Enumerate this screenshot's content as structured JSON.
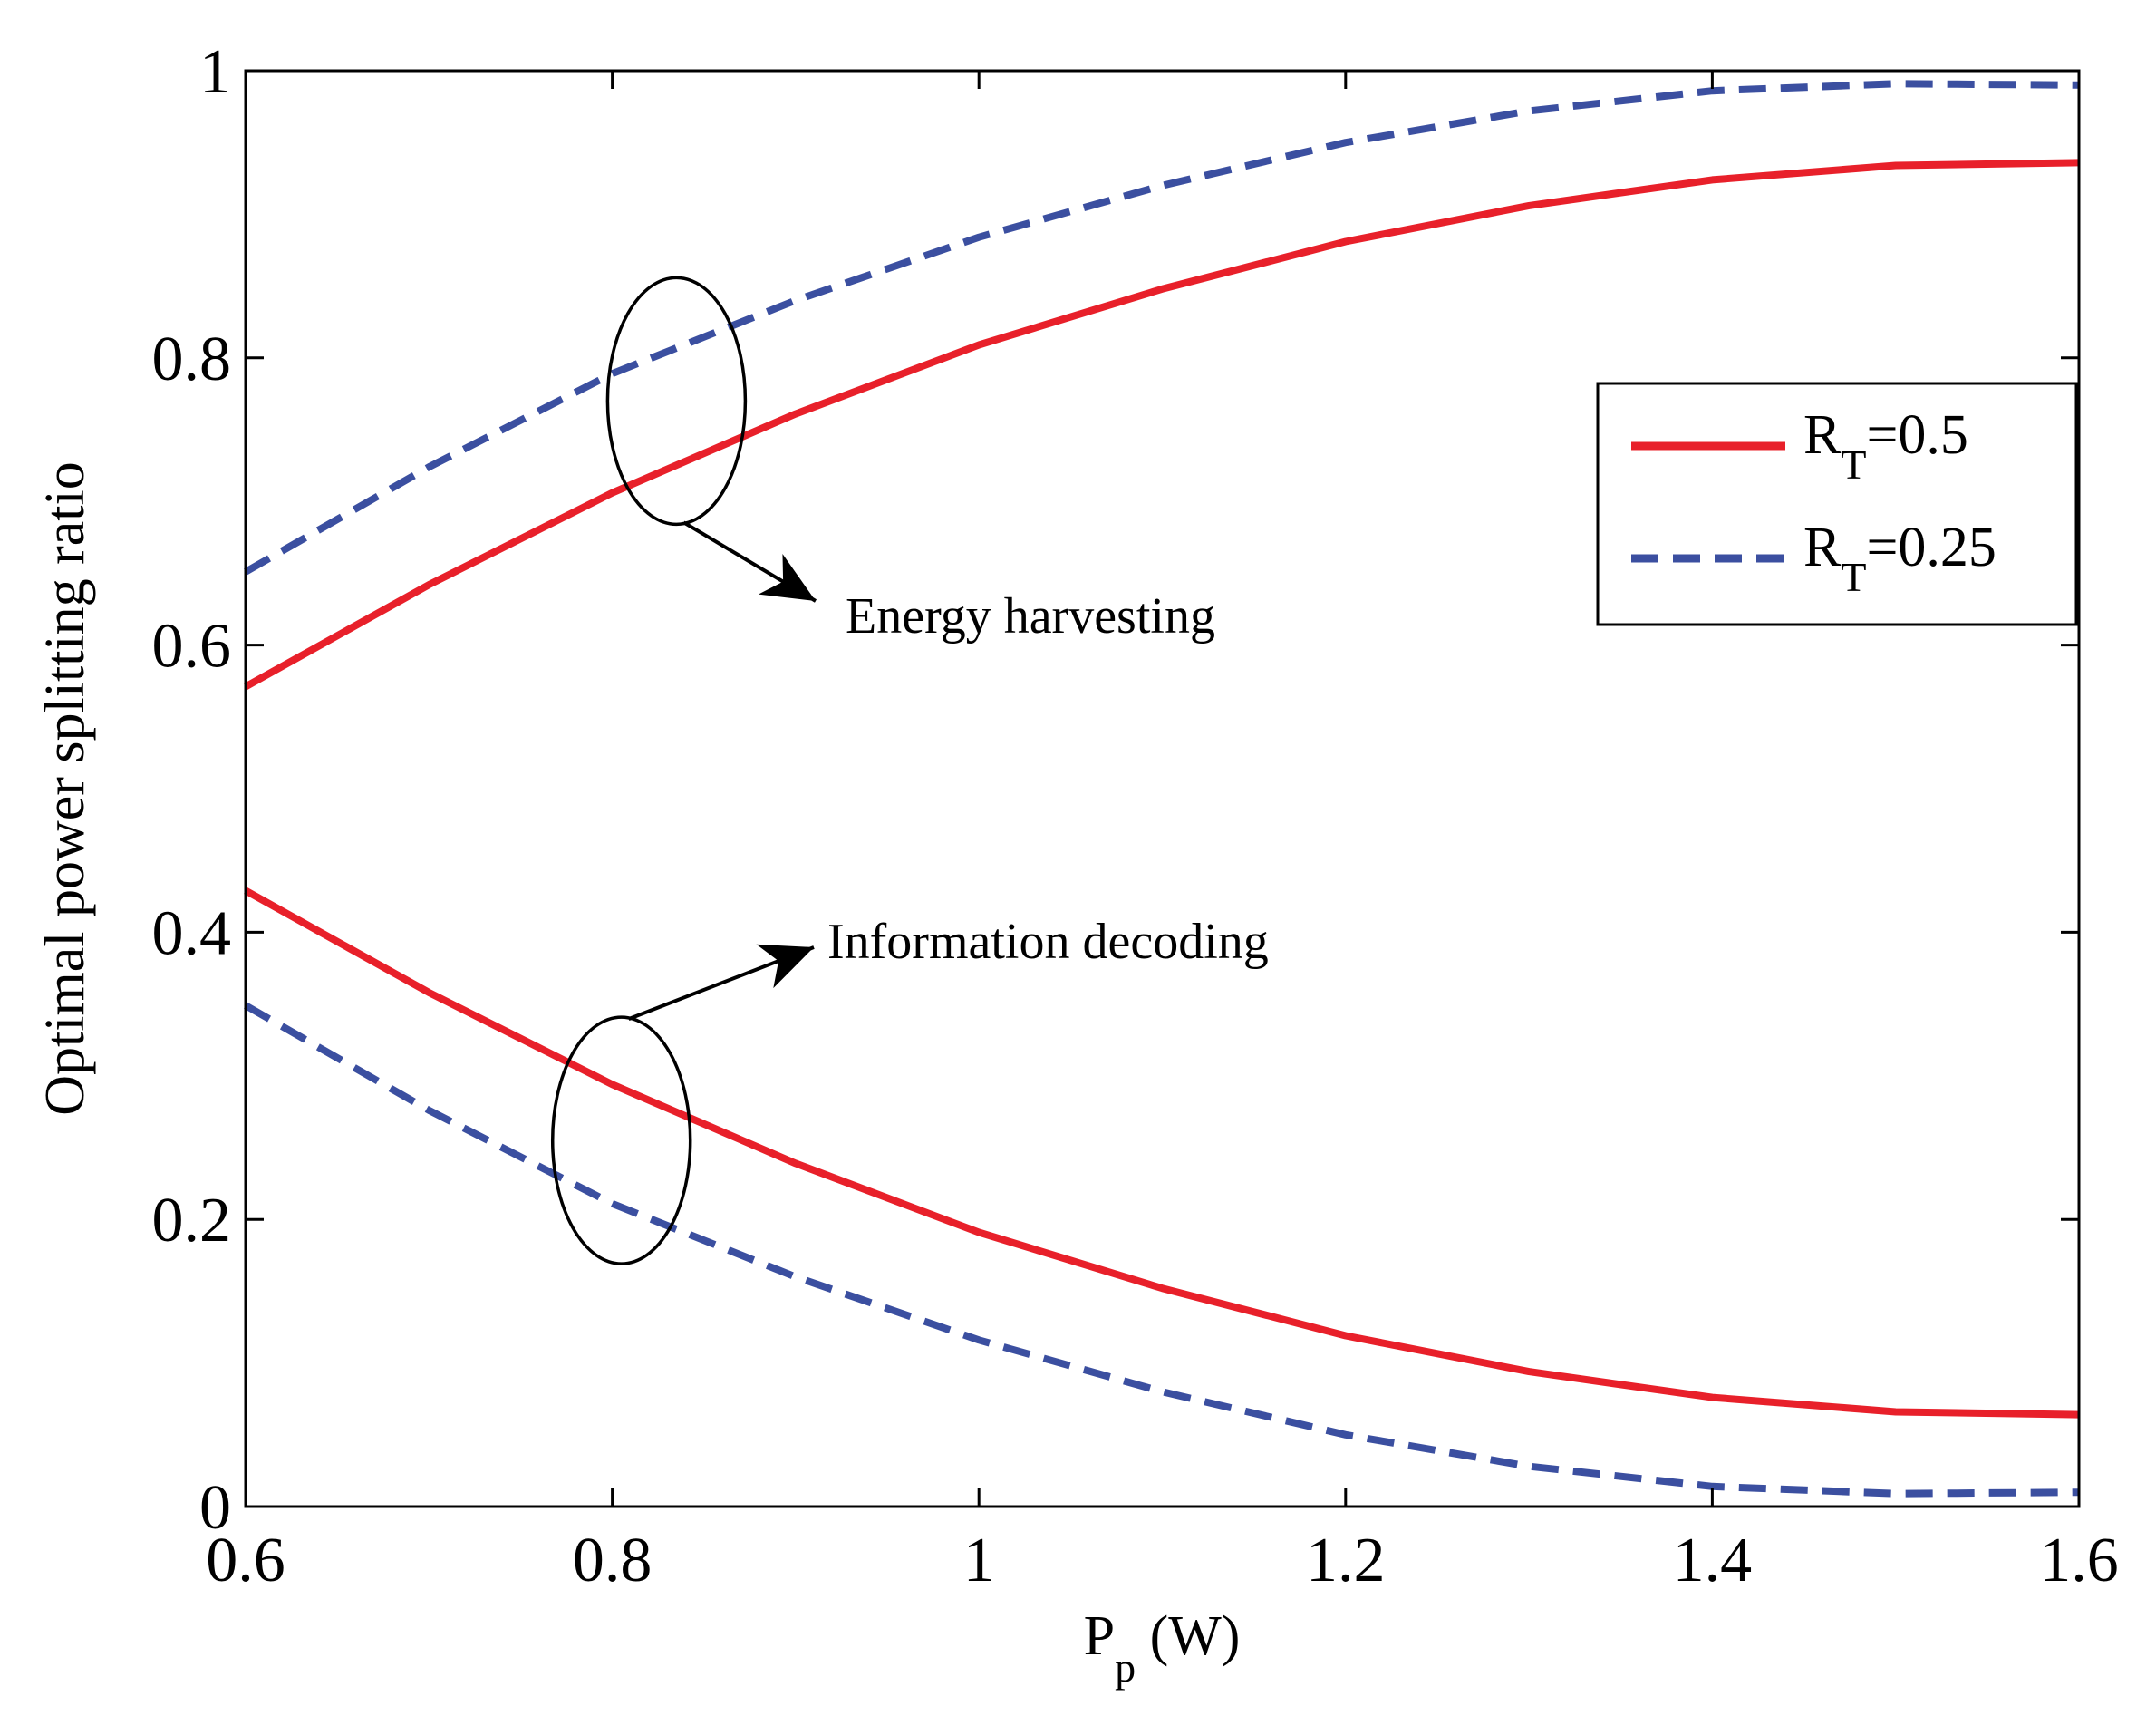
{
  "chart_data": {
    "type": "line",
    "title": "",
    "xlabel": {
      "main": "P",
      "sub": "p",
      "unit": " (W)"
    },
    "ylabel": "Optimal power splitting ratio",
    "xlim": [
      0.6,
      1.6
    ],
    "ylim": [
      0,
      1
    ],
    "xticks": [
      0.6,
      0.8,
      1.0,
      1.2,
      1.4,
      1.6
    ],
    "xtick_labels": [
      "0.6",
      "0.8",
      "1",
      "1.2",
      "1.4",
      "1.6"
    ],
    "yticks": [
      0,
      0.2,
      0.4,
      0.6,
      0.8,
      1.0
    ],
    "ytick_labels": [
      "0",
      "0.2",
      "0.4",
      "0.6",
      "0.8",
      "1"
    ],
    "grid": false,
    "legend_position": "right",
    "x": [
      0.6,
      0.7,
      0.8,
      0.9,
      1.0,
      1.1,
      1.2,
      1.3,
      1.4,
      1.5,
      1.6
    ],
    "series": [
      {
        "name": "R_T=0.5",
        "group": "energy-harvesting",
        "legend": true,
        "style": "solid",
        "color": "#e8202a",
        "values": [
          0.571,
          0.642,
          0.706,
          0.761,
          0.809,
          0.848,
          0.881,
          0.906,
          0.924,
          0.934,
          0.936
        ]
      },
      {
        "name": "R_T=0.25",
        "group": "energy-harvesting",
        "legend": true,
        "style": "dashed",
        "color": "#3b4fa0",
        "values": [
          0.651,
          0.724,
          0.789,
          0.84,
          0.884,
          0.92,
          0.95,
          0.972,
          0.986,
          0.991,
          0.99
        ]
      },
      {
        "name": "R_T=0.5",
        "group": "information-decoding",
        "legend": false,
        "style": "solid",
        "color": "#e8202a",
        "values": [
          0.429,
          0.358,
          0.294,
          0.239,
          0.191,
          0.152,
          0.119,
          0.094,
          0.076,
          0.066,
          0.064
        ]
      },
      {
        "name": "R_T=0.25",
        "group": "information-decoding",
        "legend": false,
        "style": "dashed",
        "color": "#3b4fa0",
        "values": [
          0.349,
          0.276,
          0.211,
          0.16,
          0.116,
          0.08,
          0.05,
          0.028,
          0.014,
          0.009,
          0.01
        ]
      }
    ],
    "legend": [
      {
        "main": "R",
        "sub": "T",
        "value": "=0.5",
        "style": "solid",
        "color": "#e8202a"
      },
      {
        "main": "R",
        "sub": "T",
        "value": "=0.25",
        "style": "dashed",
        "color": "#3b4fa0"
      }
    ],
    "annotations": [
      {
        "text": "Energy harvesting",
        "ellipse_center": [
          0.835,
          0.77
        ]
      },
      {
        "text": "Information decoding",
        "ellipse_center": [
          0.805,
          0.255
        ]
      }
    ]
  }
}
